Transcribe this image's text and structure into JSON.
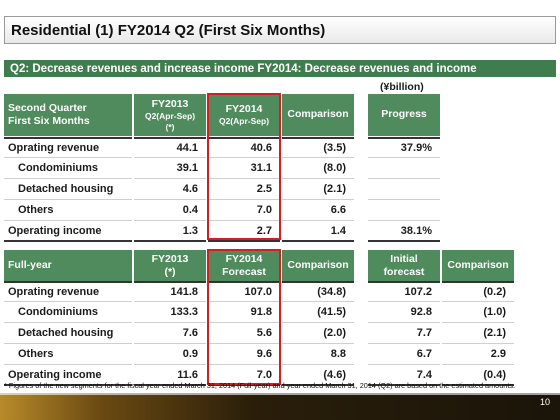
{
  "title": "Residential (1) FY2014 Q2 (First Six Months)",
  "banner": "Q2: Decrease revenues and increase income FY2014: Decrease revenues and income",
  "unit": "(¥billion)",
  "q2": {
    "header": {
      "label_line1": "Second Quarter",
      "label_line2": "First Six Months",
      "fy2013": "FY2013",
      "fy2013_sub1": "Q2(Apr-Sep)",
      "fy2013_sub2": "(*)",
      "fy2014": "FY2014",
      "fy2014_sub": "Q2(Apr-Sep)",
      "comparison": "Comparison",
      "progress": "Progress"
    },
    "rows": [
      {
        "label": "Oprating revenue",
        "fy2013": "44.1",
        "fy2014": "40.6",
        "comparison": "(3.5)",
        "progress": "37.9%"
      },
      {
        "label": "Condominiums",
        "fy2013": "39.1",
        "fy2014": "31.1",
        "comparison": "(8.0)",
        "progress": ""
      },
      {
        "label": "Detached housing",
        "fy2013": "4.6",
        "fy2014": "2.5",
        "comparison": "(2.1)",
        "progress": ""
      },
      {
        "label": "Others",
        "fy2013": "0.4",
        "fy2014": "7.0",
        "comparison": "6.6",
        "progress": ""
      },
      {
        "label": "Operating income",
        "fy2013": "1.3",
        "fy2014": "2.7",
        "comparison": "1.4",
        "progress": "38.1%"
      }
    ]
  },
  "fy": {
    "header": {
      "label": "Full-year",
      "fy2013": "FY2013",
      "fy2013_sub": "(*)",
      "fy2014": "FY2014",
      "fy2014_sub": "Forecast",
      "comparison": "Comparison",
      "initial_line1": "Initial",
      "initial_line2": "forecast",
      "comparison2": "Comparison"
    },
    "rows": [
      {
        "label": "Oprating revenue",
        "fy2013": "141.8",
        "fy2014": "107.0",
        "comparison": "(34.8)",
        "initial": "107.2",
        "comparison2": "(0.2)"
      },
      {
        "label": "Condominiums",
        "fy2013": "133.3",
        "fy2014": "91.8",
        "comparison": "(41.5)",
        "initial": "92.8",
        "comparison2": "(1.0)"
      },
      {
        "label": "Detached housing",
        "fy2013": "7.6",
        "fy2014": "5.6",
        "comparison": "(2.0)",
        "initial": "7.7",
        "comparison2": "(2.1)"
      },
      {
        "label": "Others",
        "fy2013": "0.9",
        "fy2014": "9.6",
        "comparison": "8.8",
        "initial": "6.7",
        "comparison2": "2.9"
      },
      {
        "label": "Operating income",
        "fy2013": "11.6",
        "fy2014": "7.0",
        "comparison": "(4.6)",
        "initial": "7.4",
        "comparison2": "(0.4)"
      }
    ]
  },
  "footnote": "* Figures of the new segments for the fiscal year ended March 31, 2014 (Full-year) and year ended March 31, 2014 (Q2) are based on the estimated amounts.",
  "page_number": "10"
}
